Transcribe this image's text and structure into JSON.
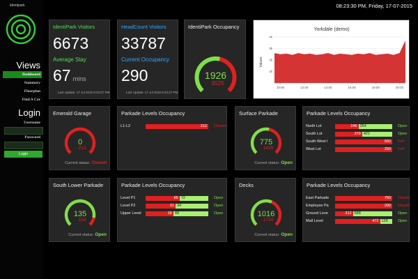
{
  "header": {
    "datetime": "08:23:30 PM, Friday, 17-07-2015"
  },
  "sidebar": {
    "logo": "identipark",
    "views_title": "Views",
    "menu": [
      "Dashboard",
      "Summary",
      "Floorplan",
      "Find A Car"
    ],
    "login_title": "Login",
    "username_label": "Username",
    "password_label": "Password",
    "login_button": "Login"
  },
  "stats": [
    {
      "title": "IdentiPark Visitors",
      "value": 6673,
      "subtitle": "Average Stay",
      "subvalue": 67,
      "unit": "mins",
      "update": "Last Update: 17 Jul 2015 8:23:27 PM"
    },
    {
      "title": "HeadCount Visitors",
      "value": 33787,
      "subtitle": "Current Occupancy",
      "subvalue": 290,
      "update": "Last Update: 17 Jul 2015 8:23:27 PM"
    }
  ],
  "occupancy": {
    "title": "IdentiPark Occupancy",
    "value": 1926,
    "capacity": 3525
  },
  "chart": {
    "type": "area",
    "title": "Yorkdale (demo)",
    "y_label": "Values",
    "x": [
      9.5,
      10,
      10.5,
      11,
      11.5,
      12,
      12.5,
      13,
      13.5,
      14,
      14.5,
      15,
      15.5,
      16,
      16.5,
      17,
      17.5,
      18,
      18.5,
      19,
      19.5,
      20,
      20.5
    ],
    "values": [
      2600,
      2500,
      2550,
      2450,
      2600,
      2500,
      2550,
      2450,
      2500,
      2600,
      2450,
      2550,
      2500,
      2450,
      2550,
      2500,
      2600,
      2450,
      2500,
      2550,
      2450,
      2600,
      3700
    ],
    "color": "#cc1111",
    "xlim": [
      9.5,
      20.5
    ],
    "ylim": [
      0,
      4000
    ],
    "xticks": [
      {
        "value": 10,
        "label": "10:00"
      },
      {
        "value": 12,
        "label": "12:00"
      },
      {
        "value": 14,
        "label": "14:00"
      },
      {
        "value": 16,
        "label": "16:00"
      },
      {
        "value": 18,
        "label": "18:00"
      },
      {
        "value": 20,
        "label": "20:00"
      }
    ],
    "yticks": [
      {
        "value": 1000,
        "label": "1k"
      },
      {
        "value": 2000,
        "label": "2k"
      },
      {
        "value": 3000,
        "label": "3k"
      },
      {
        "value": 4000,
        "label": "4k"
      }
    ]
  },
  "garages": [
    {
      "title": "Emerald Garage",
      "value": 0,
      "capacity": 212,
      "status_label": "Current status:",
      "status": "Closed"
    },
    {
      "title": "Surface Parkade",
      "value": 775,
      "capacity": 1425,
      "status_label": "Current status:",
      "status": "Open"
    },
    {
      "title": "South Lower Parkade",
      "value": 135,
      "capacity": 154,
      "status_label": "Current status:",
      "status": "Open"
    },
    {
      "title": "Decks",
      "value": 1016,
      "capacity": 1734,
      "status_label": "Current status:",
      "status": "Open"
    }
  ],
  "levels": [
    {
      "title": "Parkade Levels Occupancy",
      "rows": [
        {
          "name": "L1-L2",
          "occupied": 212,
          "status": "Closed"
        }
      ]
    },
    {
      "title": "Parkade Levels Occupancy",
      "rows": [
        {
          "name": "North Lot",
          "occupied": 246,
          "free": 354,
          "status": "Open"
        },
        {
          "name": "South Lot",
          "occupied": 379,
          "free": 421,
          "status": "Open"
        },
        {
          "name": "South West I",
          "occupied": 550,
          "status": "Full"
        },
        {
          "name": "West Lot",
          "occupied": 250,
          "status": "Full"
        }
      ]
    },
    {
      "title": "Parkade Levels Occupancy",
      "rows": [
        {
          "name": "Level P1",
          "occupied": 85,
          "free": 72,
          "status": "Open"
        },
        {
          "name": "Level P2",
          "occupied": 31,
          "free": 34,
          "status": "Open"
        },
        {
          "name": "Upper Level",
          "occupied": 39,
          "free": 49,
          "status": "Open"
        }
      ]
    },
    {
      "title": "Parkade Levels Occupancy",
      "rows": [
        {
          "name": "East Parkade",
          "occupied": 750,
          "status": "Closed"
        },
        {
          "name": "Employee Pa",
          "occupied": 200,
          "status": "Closed"
        },
        {
          "name": "Ground Leve",
          "occupied": 312,
          "free": 688,
          "status": "Open"
        },
        {
          "name": "Mall Level",
          "occupied": 472,
          "free": 128,
          "status": "Open"
        }
      ]
    }
  ]
}
